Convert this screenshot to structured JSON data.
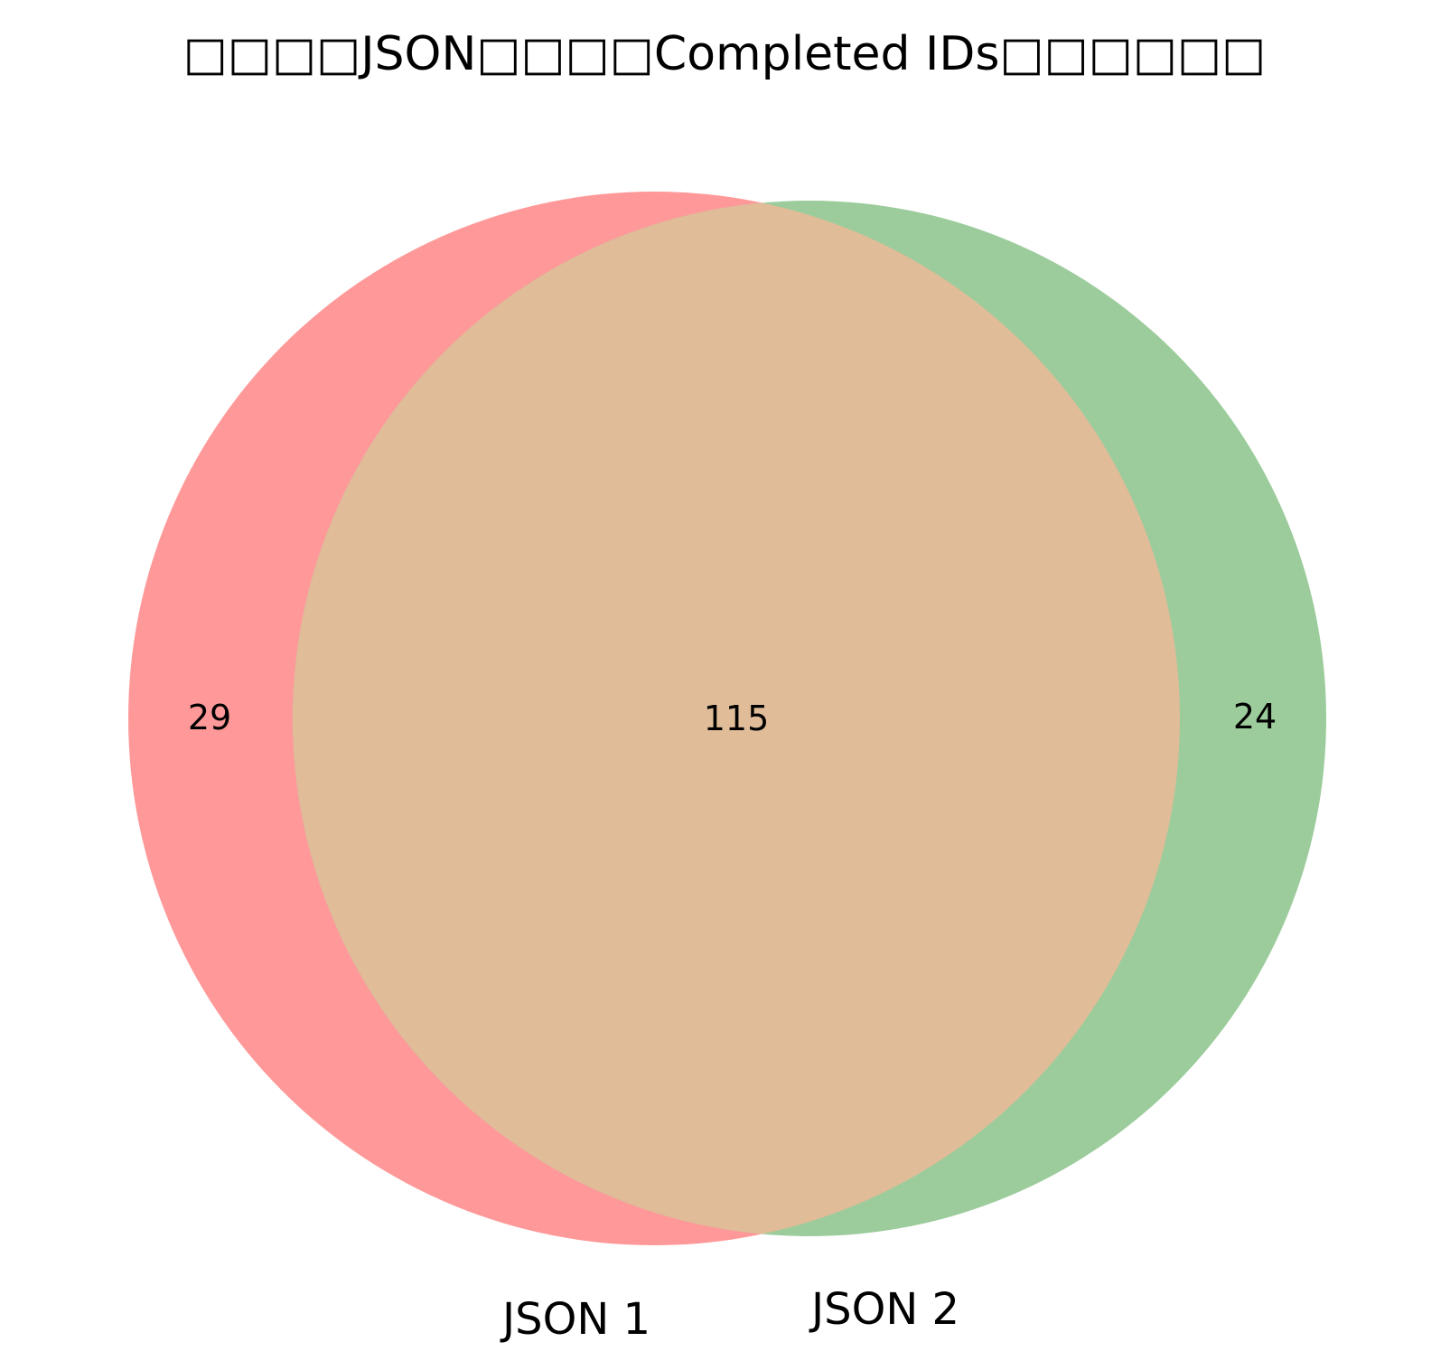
{
  "chart_data": {
    "type": "venn",
    "title": "□□□□JSON□□□□Completed IDs□□□□□□",
    "sets": [
      {
        "name": "JSON 1",
        "only": 29,
        "color": "#ff9999"
      },
      {
        "name": "JSON 2",
        "only": 24,
        "color": "#9ccc9b"
      }
    ],
    "intersection": 115,
    "intersection_color": "#e0bc99",
    "counts": {
      "left_only": "29",
      "both": "115",
      "right_only": "24"
    }
  }
}
